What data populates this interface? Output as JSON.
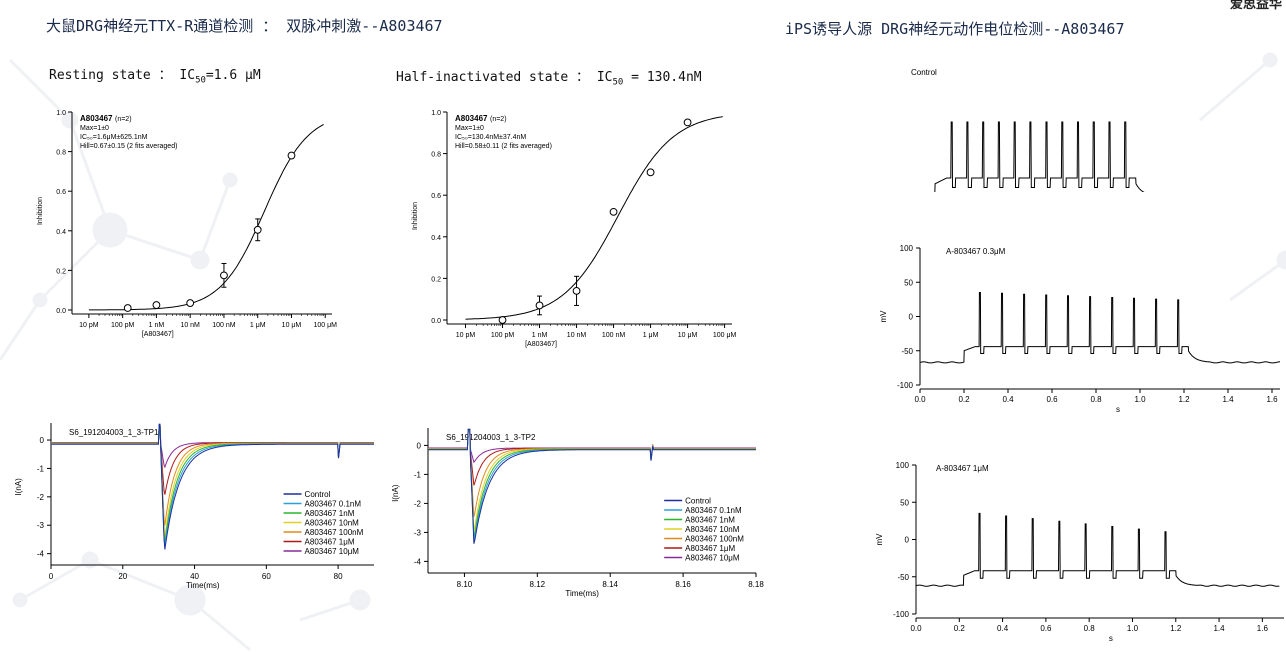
{
  "header": {
    "left_title": "大鼠DRG神经元TTX-R通道检测 ： 双脉冲刺激--A803467",
    "right_title": "iPS诱导人源 DRG神经元动作电位检测--A803467",
    "corner_text": "爱思益华"
  },
  "panels": {
    "resting_label": "Resting state ：",
    "resting_ic50": "IC",
    "resting_ic50_sub": "50",
    "resting_ic50_val": "=1.6 μM",
    "half_label": "Half-inactivated state ：",
    "half_ic50": "IC",
    "half_ic50_sub": "50",
    "half_ic50_val": " = 130.4nM"
  },
  "colors": {
    "title": "#1a2a4a",
    "control": "#1f2f9f",
    "c01": "#2a9fd8",
    "c1": "#2bb52b",
    "c10": "#e0d020",
    "c100": "#e08a1a",
    "c1u": "#b01818",
    "c10u": "#8a2a9a"
  },
  "chart_data": [
    {
      "type": "scatter",
      "id": "dose-resting",
      "x_ticks": [
        "10 pM",
        "100 pM",
        "1 nM",
        "10 nM",
        "100 nM",
        "1 μM",
        "10 μM",
        "100 μM"
      ],
      "x_log_values": [
        -11,
        -10,
        -9,
        -8,
        -7,
        -6,
        -5,
        -4
      ],
      "xlabel": "[A803467]",
      "ylabel": "Inhibition",
      "ylim": [
        0,
        1.0
      ],
      "y_ticks": [
        "0.0",
        "0.2",
        "0.4",
        "0.6",
        "0.8",
        "1.0"
      ],
      "legend": [
        "A803467",
        "(n=2)",
        "Max=1±0",
        "IC₅₀=1.6μM±625.1nM",
        "Hill=0.67±0.15 (2 fits averaged)"
      ],
      "points": [
        {
          "log_x": -9.85,
          "y": 0.01,
          "err": 0.01
        },
        {
          "log_x": -9.0,
          "y": 0.025,
          "err": 0.01
        },
        {
          "log_x": -8.0,
          "y": 0.035,
          "err": 0.01
        },
        {
          "log_x": -7.0,
          "y": 0.175,
          "err": 0.06
        },
        {
          "log_x": -6.0,
          "y": 0.405,
          "err": 0.055
        },
        {
          "log_x": -5.0,
          "y": 0.78,
          "err": 0.01
        }
      ],
      "fit": {
        "ic50_log": -5.8,
        "hill": 0.67
      }
    },
    {
      "type": "scatter",
      "id": "dose-half",
      "x_ticks": [
        "10 pM",
        "100 pM",
        "1 nM",
        "10 nM",
        "100 nM",
        "1 μM",
        "10 μM",
        "100 μM"
      ],
      "x_log_values": [
        -11,
        -10,
        -9,
        -8,
        -7,
        -6,
        -5,
        -4
      ],
      "xlabel": "[A803467]",
      "ylabel": "Inhibition",
      "ylim": [
        0,
        1.0
      ],
      "y_ticks": [
        "0.0",
        "0.2",
        "0.4",
        "0.6",
        "0.8",
        "1.0"
      ],
      "legend": [
        "A803467",
        "(n=2)",
        "Max=1±0",
        "IC₅₀=130.4nM±37.4nM",
        "Hill=0.58±0.11 (2 fits averaged)"
      ],
      "points": [
        {
          "log_x": -10.0,
          "y": 0.0,
          "err": 0.005
        },
        {
          "log_x": -9.0,
          "y": 0.07,
          "err": 0.045
        },
        {
          "log_x": -8.0,
          "y": 0.14,
          "err": 0.07
        },
        {
          "log_x": -7.0,
          "y": 0.52,
          "err": 0.01
        },
        {
          "log_x": -6.0,
          "y": 0.71,
          "err": 0.01
        },
        {
          "log_x": -5.0,
          "y": 0.95,
          "err": 0.01
        }
      ],
      "fit": {
        "ic50_log": -6.88,
        "hill": 0.58
      }
    },
    {
      "type": "line",
      "id": "current-tp1",
      "title": "S6_191204003_1_3-TP1",
      "xlabel": "Time(ms)",
      "ylabel": "I(nA)",
      "xlim": [
        0,
        90
      ],
      "ylim": [
        -4.4,
        0.6
      ],
      "x_ticks": [
        0,
        20,
        40,
        60,
        80
      ],
      "y_ticks": [
        0,
        -1,
        -2,
        -3,
        -4
      ],
      "legend": [
        "Control",
        "A803467 0.1nM",
        "A803467 1nM",
        "A803467 10nM",
        "A803467 100nM",
        "A803467 1μM",
        "A803467 10μM"
      ],
      "peaks": [
        -3.8,
        -3.7,
        -3.6,
        -3.4,
        -3.0,
        -1.9,
        -0.9
      ],
      "pulse1_ms": 30,
      "pulse2_ms": 80
    },
    {
      "type": "line",
      "id": "current-tp2",
      "title": "S6_191204003_1_3-TP2",
      "xlabel": "Time(ms)",
      "ylabel": "I(nA)",
      "xlim": [
        8.09,
        8.18
      ],
      "ylim": [
        -4.4,
        0.6
      ],
      "x_ticks": [
        "8.10",
        "8.12",
        "8.14",
        "8.16",
        "8.18"
      ],
      "y_ticks": [
        0,
        -1,
        -2,
        -3,
        -4
      ],
      "legend": [
        "Control",
        "A803467 0.1nM",
        "A803467 1nM",
        "A803467 10nM",
        "A803467 100nM",
        "A803467 1μM",
        "A803467 10μM"
      ],
      "peaks": [
        -3.3,
        -3.2,
        -3.1,
        -2.9,
        -2.4,
        -1.3,
        -0.5
      ],
      "pulse1_ms": 8.101,
      "pulse2_ms": 8.151
    },
    {
      "type": "line",
      "id": "ap-control",
      "label": "Control",
      "spikes": 12
    },
    {
      "type": "line",
      "id": "ap-0.3uM",
      "label": "A-803467 0.3μM",
      "xlabel": "s",
      "ylabel": "mV",
      "xlim": [
        0,
        1.7
      ],
      "ylim": [
        -100,
        100
      ],
      "x_ticks": [
        "0.0",
        "0.2",
        "0.4",
        "0.6",
        "0.8",
        "1.0",
        "1.2",
        "1.4",
        "1.6"
      ],
      "y_ticks": [
        100,
        50,
        0,
        -50,
        -100
      ],
      "spikes": 10
    },
    {
      "type": "line",
      "id": "ap-1uM",
      "label": "A-803467 1μM",
      "xlabel": "s",
      "ylabel": "mV",
      "xlim": [
        0,
        1.7
      ],
      "ylim": [
        -100,
        100
      ],
      "x_ticks": [
        "0.0",
        "0.2",
        "0.4",
        "0.6",
        "0.8",
        "1.0",
        "1.2",
        "1.4",
        "1.6"
      ],
      "y_ticks": [
        100,
        50,
        0,
        -50,
        -100
      ],
      "spikes": 8
    }
  ]
}
